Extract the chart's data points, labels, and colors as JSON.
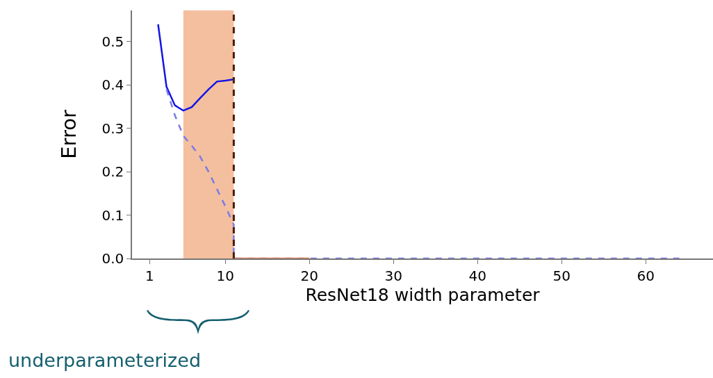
{
  "chart_data": {
    "type": "line",
    "xlabel": "ResNet18 width parameter",
    "ylabel": "Error",
    "xlim": [
      -1.1,
      68
    ],
    "xticks": [
      1,
      10,
      20,
      30,
      40,
      50,
      60
    ],
    "ylim": [
      0,
      0.572
    ],
    "yticks": [
      {
        "value": 0,
        "label": "0.0"
      },
      0.1,
      0.2,
      0.3,
      0.4,
      0.5
    ],
    "series": [
      {
        "color": "#1414e6",
        "line_style": "solid",
        "x": [
          2,
          3,
          4,
          5,
          6,
          7,
          8,
          9,
          10,
          11
        ],
        "values": [
          0.54,
          0.396,
          0.353,
          0.341,
          0.349,
          0.37,
          0.39,
          0.408,
          0.41,
          0.413
        ]
      },
      {
        "color": "#7a7ae6",
        "line_style": "dashed",
        "x": [
          3,
          4,
          5,
          6,
          7,
          8,
          9,
          10,
          11,
          11,
          20,
          64
        ],
        "values": [
          0.39,
          0.33,
          0.283,
          0.26,
          0.235,
          0.2,
          0.16,
          0.12,
          0.078,
          0,
          0,
          0
        ]
      },
      {
        "color": "#d9845a",
        "line_style": "solid",
        "x": [
          11,
          20
        ],
        "values": [
          0,
          0
        ]
      }
    ],
    "bands": [
      {
        "axis": "x",
        "from": 5,
        "to": 11,
        "color": "#f4bf9f"
      }
    ],
    "ref_lines": [
      {
        "axis": "x",
        "value": 11,
        "color": "#4a1c05",
        "line_style": "dashed"
      }
    ],
    "annotations": [
      "underparameterized"
    ],
    "marker": "none"
  }
}
